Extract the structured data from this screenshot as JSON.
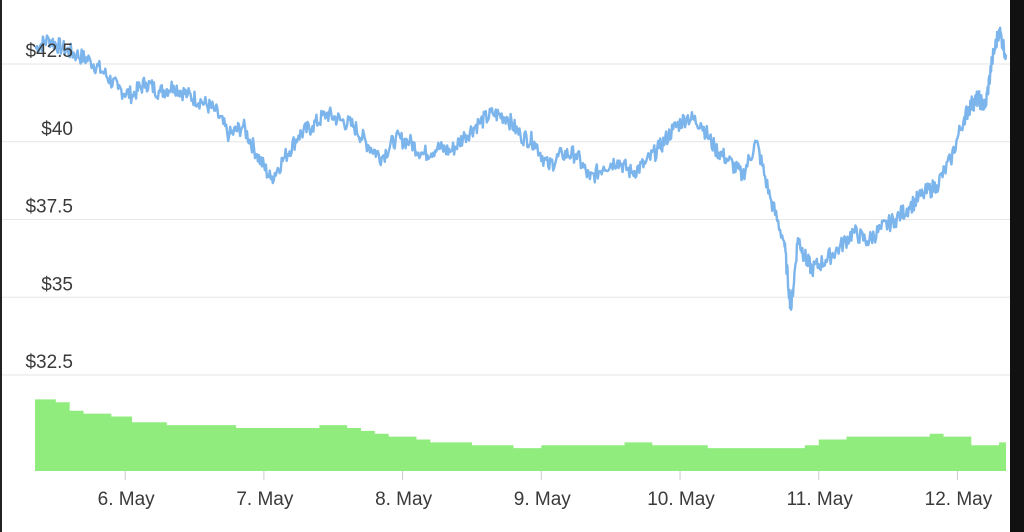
{
  "chart_data": {
    "type": "area",
    "title": "",
    "xlabel": "",
    "ylabel": "",
    "ylim": [
      30.5,
      43.5
    ],
    "grid": true,
    "y_ticks": [
      "$32.5",
      "$35",
      "$37.5",
      "$40",
      "$42.5"
    ],
    "y_tick_values": [
      32.5,
      35,
      37.5,
      40,
      42.5
    ],
    "x_ticks": [
      "6. May",
      "7. May",
      "8. May",
      "9. May",
      "10. May",
      "11. May",
      "12. May"
    ],
    "x_tick_values": [
      6,
      7,
      8,
      9,
      10,
      11,
      12
    ],
    "xlim": [
      5.35,
      12.35
    ],
    "price_series": {
      "color": "#7cb5ec",
      "x": [
        5.35,
        5.45,
        5.55,
        5.65,
        5.75,
        5.85,
        5.95,
        6.05,
        6.15,
        6.25,
        6.35,
        6.45,
        6.55,
        6.65,
        6.75,
        6.85,
        6.95,
        7.05,
        7.15,
        7.25,
        7.35,
        7.45,
        7.55,
        7.65,
        7.75,
        7.85,
        7.95,
        8.05,
        8.15,
        8.25,
        8.35,
        8.45,
        8.55,
        8.65,
        8.75,
        8.85,
        8.95,
        9.05,
        9.15,
        9.25,
        9.35,
        9.45,
        9.55,
        9.65,
        9.75,
        9.85,
        9.95,
        10.05,
        10.15,
        10.25,
        10.35,
        10.45,
        10.55,
        10.65,
        10.75,
        10.8,
        10.85,
        10.9,
        10.95,
        11.05,
        11.15,
        11.25,
        11.35,
        11.45,
        11.55,
        11.65,
        11.75,
        11.85,
        11.95,
        12.05,
        12.1,
        12.15,
        12.2,
        12.25,
        12.3,
        12.35
      ],
      "y": [
        43.0,
        43.3,
        43.0,
        42.8,
        42.6,
        42.2,
        41.7,
        41.5,
        41.9,
        41.6,
        41.8,
        41.5,
        41.3,
        41.0,
        40.2,
        40.5,
        39.6,
        38.8,
        39.5,
        40.2,
        40.5,
        40.9,
        40.7,
        40.5,
        39.9,
        39.5,
        40.1,
        40.0,
        39.6,
        39.8,
        39.7,
        40.2,
        40.6,
        40.9,
        40.8,
        40.2,
        40.0,
        39.2,
        39.6,
        39.6,
        38.8,
        39.2,
        39.4,
        39.0,
        39.3,
        39.8,
        40.4,
        40.8,
        40.6,
        39.8,
        39.4,
        38.9,
        40.0,
        38.2,
        36.8,
        34.6,
        36.9,
        36.3,
        35.9,
        36.2,
        36.6,
        37.1,
        36.8,
        37.2,
        37.5,
        37.9,
        38.3,
        38.6,
        39.4,
        40.8,
        41.2,
        41.4,
        41.1,
        42.6,
        43.6,
        42.8
      ]
    },
    "volume_series": {
      "color": "#90ed7d",
      "x": [
        5.35,
        5.5,
        5.6,
        5.7,
        5.8,
        5.9,
        6.05,
        6.2,
        6.3,
        6.4,
        6.5,
        6.6,
        6.7,
        6.8,
        6.9,
        7.0,
        7.1,
        7.2,
        7.3,
        7.4,
        7.5,
        7.6,
        7.7,
        7.8,
        7.9,
        8.0,
        8.1,
        8.2,
        8.3,
        8.4,
        8.5,
        8.6,
        8.7,
        8.8,
        8.9,
        9.0,
        9.2,
        9.4,
        9.6,
        9.8,
        10.0,
        10.2,
        10.4,
        10.6,
        10.8,
        10.9,
        11.0,
        11.2,
        11.4,
        11.6,
        11.8,
        11.9,
        12.0,
        12.1,
        12.2,
        12.3,
        12.35
      ],
      "y": [
        25,
        24,
        21,
        20,
        20,
        19,
        17,
        17,
        16,
        16,
        16,
        16,
        16,
        15,
        15,
        15,
        15,
        15,
        15,
        16,
        16,
        15,
        14,
        13,
        12,
        12,
        11,
        10,
        10,
        10,
        9,
        9,
        9,
        8,
        8,
        9,
        9,
        9,
        10,
        9,
        9,
        8,
        8,
        8,
        8,
        9,
        11,
        12,
        12,
        12,
        13,
        12,
        12,
        9,
        9,
        10,
        15
      ]
    },
    "volume_max": 30
  }
}
